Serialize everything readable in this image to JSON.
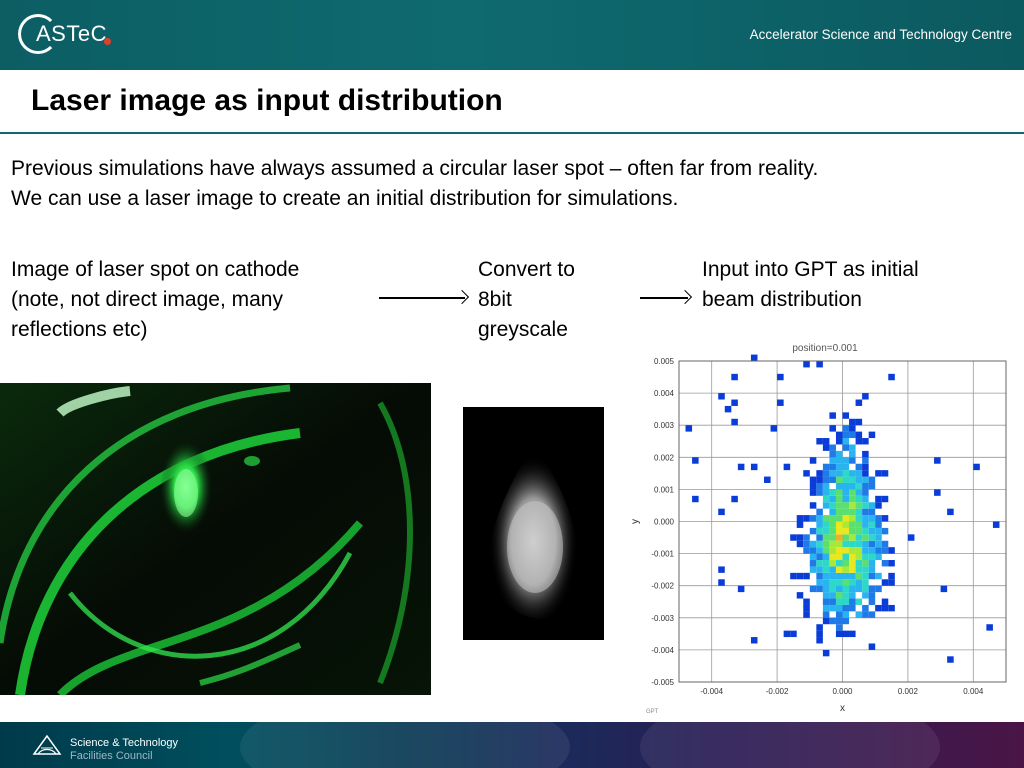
{
  "header": {
    "logo_text": "ASTeC",
    "centre_name": "Accelerator Science and Technology Centre"
  },
  "slide": {
    "title": "Laser image as input distribution",
    "intro": [
      "Previous simulations have always assumed a circular laser spot – often far from reality.",
      "We can use a laser image to create an initial distribution for simulations."
    ],
    "captions": {
      "laser": [
        "Image of laser spot on cathode",
        "(note, not direct image, many",
        "reflections etc)"
      ],
      "convert": [
        "Convert to",
        "8bit",
        "greyscale"
      ],
      "gpt": [
        "Input into GPT as initial",
        "beam distribution"
      ]
    }
  },
  "chart_data": {
    "type": "heatmap",
    "title": "position=0.001",
    "xlabel": "x",
    "ylabel": "y",
    "xlim": [
      -0.005,
      0.005
    ],
    "ylim": [
      -0.005,
      0.005
    ],
    "x_ticks": [
      "-0.004",
      "-0.002",
      "0.000",
      "0.002",
      "0.004"
    ],
    "x_tick_values": [
      -0.004,
      -0.002,
      0.0,
      0.002,
      0.004
    ],
    "y_ticks": [
      "0.005",
      "0.004",
      "0.003",
      "0.002",
      "0.001",
      "0.000",
      "-0.001",
      "-0.002",
      "-0.003",
      "-0.004",
      "-0.005"
    ],
    "y_tick_values": [
      0.005,
      0.004,
      0.003,
      0.002,
      0.001,
      0.0,
      -0.001,
      -0.002,
      -0.003,
      -0.004,
      -0.005
    ],
    "grid": true,
    "watermark": "GPT",
    "distribution": {
      "center_x": 0.0,
      "center_y": -0.0008,
      "core_half_width": 0.0015,
      "top_y": 0.0035,
      "bottom_y": -0.004
    }
  },
  "footer": {
    "org_line1": "Science & Technology",
    "org_line2": "Facilities Council"
  },
  "colors": {
    "header": "#0e6a6f",
    "accent_dot": "#e0402a",
    "laser_green": "#22e040"
  }
}
